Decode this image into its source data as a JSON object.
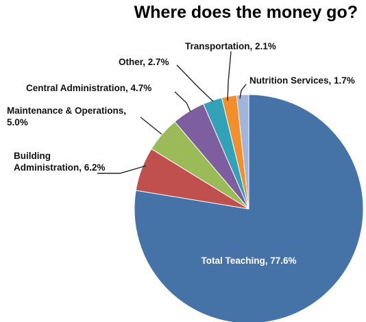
{
  "chart_data": {
    "type": "pie",
    "title": "Where does the money go?",
    "slices": [
      {
        "label": "Total Teaching",
        "value": 77.6,
        "display": "Total Teaching, 77.6%",
        "color": "#4572a7"
      },
      {
        "label": "Building Administration",
        "value": 6.2,
        "display_lines": [
          "Building",
          "Administration, 6.2%"
        ],
        "color": "#c0504d"
      },
      {
        "label": "Maintenance & Operations",
        "value": 5.0,
        "display_lines": [
          "Maintenance & Operations,",
          "5.0%"
        ],
        "color": "#9bbb59"
      },
      {
        "label": "Central Administration",
        "value": 4.7,
        "display": "Central Administration, 4.7%",
        "color": "#7d5fa0"
      },
      {
        "label": "Other",
        "value": 2.7,
        "display": "Other, 2.7%",
        "color": "#31a2b8"
      },
      {
        "label": "Transportation",
        "value": 2.1,
        "display": "Transportation, 2.1%",
        "color": "#f28e2b"
      },
      {
        "label": "Nutrition Services",
        "value": 1.7,
        "display": "Nutrition Services, 1.7%",
        "color": "#9fb5d9"
      }
    ],
    "start": "12 o'clock",
    "direction": "clockwise",
    "legend": "none",
    "labels": "outside with leader lines; largest slice labeled inside"
  }
}
